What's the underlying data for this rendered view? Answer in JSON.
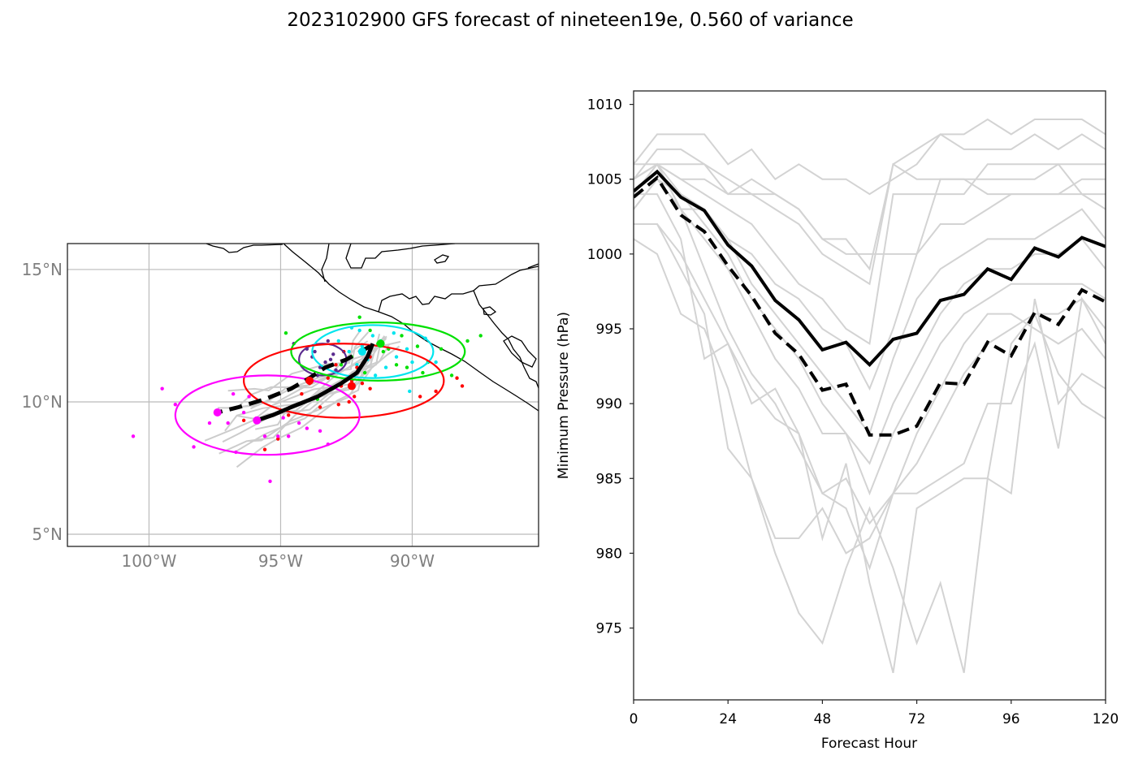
{
  "title": "2023102900 GFS forecast of nineteen19e, 0.560 of variance",
  "chart_data": [
    {
      "type": "map-scatter",
      "name": "track-map",
      "xlim": [
        -103.1,
        -85.2
      ],
      "ylim": [
        4.54,
        15.98
      ],
      "xticks": [
        {
          "value": -100,
          "label": "100°W"
        },
        {
          "value": -95,
          "label": "95°W"
        },
        {
          "value": -90,
          "label": "90°W"
        }
      ],
      "yticks": [
        {
          "value": 15,
          "label": "15°N"
        },
        {
          "value": 10,
          "label": "10°N"
        },
        {
          "value": 5,
          "label": "5°N"
        }
      ],
      "grid": true,
      "colors": {
        "ensemble": "#cccccc",
        "coast": "#000000",
        "gridline": "#bbbbbb",
        "ticklabel": "#808080"
      },
      "mean_track_solid": [
        [
          -91.5,
          12.2
        ],
        [
          -91.7,
          11.7
        ],
        [
          -92.1,
          11.1
        ],
        [
          -92.7,
          10.7
        ],
        [
          -93.6,
          10.2
        ],
        [
          -94.6,
          9.8
        ],
        [
          -95.3,
          9.5
        ],
        [
          -95.9,
          9.3
        ]
      ],
      "mean_track_dashed": [
        [
          -91.6,
          12.1
        ],
        [
          -92.5,
          11.6
        ],
        [
          -93.3,
          11.3
        ],
        [
          -93.9,
          10.9
        ],
        [
          -94.6,
          10.5
        ],
        [
          -95.6,
          10.1
        ],
        [
          -96.6,
          9.8
        ],
        [
          -97.4,
          9.6
        ]
      ],
      "ellipses": [
        {
          "color": "#5b2c8f",
          "cx": -93.4,
          "cy": 11.6,
          "rx": 0.9,
          "ry": 0.6
        },
        {
          "color": "#00e5ee",
          "cx": -91.5,
          "cy": 11.9,
          "rx": 2.3,
          "ry": 1.0
        },
        {
          "color": "#00e000",
          "cx": -91.3,
          "cy": 11.9,
          "rx": 3.3,
          "ry": 1.1
        },
        {
          "color": "#ff0000",
          "cx": -92.6,
          "cy": 10.8,
          "rx": 3.8,
          "ry": 1.4
        },
        {
          "color": "#ff00ff",
          "cx": -95.5,
          "cy": 9.5,
          "rx": 3.5,
          "ry": 1.5
        }
      ],
      "points": {
        "purple": [
          [
            -93.2,
            12.3
          ],
          [
            -94.5,
            12.2
          ],
          [
            -93.7,
            11.9
          ],
          [
            -93.1,
            11.6
          ],
          [
            -93.5,
            11.3
          ],
          [
            -93.0,
            11.8
          ],
          [
            -93.8,
            11.7
          ],
          [
            -92.9,
            11.2
          ],
          [
            -93.6,
            11.0
          ],
          [
            -93.3,
            11.5
          ],
          [
            -94.0,
            12.0
          ]
        ],
        "cyan": [
          [
            -92.3,
            12.8
          ],
          [
            -92.0,
            12.7
          ],
          [
            -91.5,
            12.5
          ],
          [
            -91.9,
            12.1
          ],
          [
            -91.2,
            12.3
          ],
          [
            -90.7,
            12.6
          ],
          [
            -90.2,
            12.0
          ],
          [
            -91.7,
            11.6
          ],
          [
            -91.0,
            11.3
          ],
          [
            -92.4,
            11.9
          ],
          [
            -90.0,
            11.5
          ],
          [
            -89.5,
            12.4
          ],
          [
            -89.1,
            11.5
          ],
          [
            -90.1,
            10.4
          ],
          [
            -92.8,
            12.3
          ],
          [
            -90.6,
            11.7
          ],
          [
            -91.4,
            11.0
          ],
          [
            -92.1,
            11.4
          ]
        ],
        "green": [
          [
            -92.0,
            13.2
          ],
          [
            -94.8,
            12.6
          ],
          [
            -91.6,
            12.7
          ],
          [
            -90.4,
            12.5
          ],
          [
            -89.8,
            12.1
          ],
          [
            -91.3,
            12.2
          ],
          [
            -88.9,
            12.0
          ],
          [
            -87.9,
            12.3
          ],
          [
            -87.4,
            12.5
          ],
          [
            -89.4,
            11.5
          ],
          [
            -91.1,
            11.9
          ],
          [
            -90.6,
            11.4
          ],
          [
            -92.3,
            11.7
          ],
          [
            -91.8,
            11.1
          ],
          [
            -90.2,
            11.3
          ],
          [
            -89.6,
            11.1
          ],
          [
            -88.5,
            11.0
          ],
          [
            -93.6,
            10.1
          ],
          [
            -92.7,
            11.4
          ],
          [
            -90.9,
            12.0
          ]
        ],
        "red": [
          [
            -92.6,
            11.9
          ],
          [
            -92.9,
            11.4
          ],
          [
            -92.1,
            11.3
          ],
          [
            -91.6,
            11.7
          ],
          [
            -92.3,
            10.8
          ],
          [
            -91.9,
            10.7
          ],
          [
            -92.7,
            10.6
          ],
          [
            -91.6,
            10.5
          ],
          [
            -92.2,
            10.2
          ],
          [
            -93.2,
            10.9
          ],
          [
            -93.9,
            10.7
          ],
          [
            -94.2,
            10.3
          ],
          [
            -93.5,
            9.8
          ],
          [
            -94.7,
            9.5
          ],
          [
            -95.1,
            8.6
          ],
          [
            -95.6,
            8.2
          ],
          [
            -88.3,
            10.9
          ],
          [
            -88.1,
            10.6
          ],
          [
            -89.1,
            10.4
          ],
          [
            -89.7,
            10.2
          ],
          [
            -92.4,
            10.0
          ],
          [
            -92.8,
            9.9
          ],
          [
            -96.4,
            9.3
          ]
        ],
        "magenta": [
          [
            -100.6,
            8.7
          ],
          [
            -99.5,
            10.5
          ],
          [
            -99.0,
            9.9
          ],
          [
            -98.3,
            8.3
          ],
          [
            -97.7,
            9.2
          ],
          [
            -96.7,
            8.1
          ],
          [
            -96.2,
            10.2
          ],
          [
            -95.6,
            8.7
          ],
          [
            -95.1,
            8.7
          ],
          [
            -94.7,
            8.7
          ],
          [
            -94.3,
            9.2
          ],
          [
            -95.4,
            7.0
          ],
          [
            -96.8,
            10.3
          ],
          [
            -94.0,
            9.0
          ],
          [
            -93.2,
            8.4
          ],
          [
            -93.5,
            8.9
          ],
          [
            -94.9,
            9.4
          ],
          [
            -96.4,
            9.6
          ],
          [
            -97.0,
            9.2
          ]
        ]
      },
      "points_large": [
        {
          "color": "#ff00ff",
          "lon": -97.4,
          "lat": 9.6
        },
        {
          "color": "#ff00ff",
          "lon": -95.9,
          "lat": 9.3
        },
        {
          "color": "#ff0000",
          "lon": -93.9,
          "lat": 10.8
        },
        {
          "color": "#ff0000",
          "lon": -92.3,
          "lat": 10.6
        },
        {
          "color": "#00e5ee",
          "lon": -91.9,
          "lat": 11.9
        },
        {
          "color": "#00e000",
          "lon": -91.2,
          "lat": 12.2
        }
      ]
    },
    {
      "type": "line",
      "name": "pressure-plot",
      "xlabel": "Forecast Hour",
      "ylabel": "Minimum Pressure (hPa)",
      "xlim": [
        0,
        120
      ],
      "ylim": [
        970.2,
        1010.9
      ],
      "xticks": [
        0,
        24,
        48,
        72,
        96,
        120
      ],
      "yticks": [
        975,
        980,
        985,
        990,
        995,
        1000,
        1005,
        1010
      ],
      "grid": false,
      "x": [
        0,
        6,
        12,
        18,
        24,
        30,
        36,
        42,
        48,
        54,
        60,
        66,
        72,
        78,
        84,
        90,
        96,
        102,
        108,
        114,
        120
      ],
      "series": [
        {
          "name": "ensemble-mean",
          "style": "solid",
          "color": "#000000",
          "values": [
            1004.2,
            1005.5,
            1003.8,
            1002.9,
            1000.6,
            999.2,
            996.9,
            995.6,
            993.6,
            994.1,
            992.6,
            994.3,
            994.7,
            996.9,
            997.3,
            999.0,
            998.3,
            1000.4,
            999.8,
            1001.1,
            1000.5
          ]
        },
        {
          "name": "deterministic",
          "style": "dashed",
          "color": "#000000",
          "values": [
            1003.8,
            1005.1,
            1002.6,
            1001.5,
            999.2,
            997.2,
            994.7,
            993.3,
            990.9,
            991.3,
            987.9,
            987.9,
            988.5,
            991.4,
            991.3,
            994.1,
            993.2,
            996.1,
            995.3,
            997.6,
            996.8
          ]
        }
      ],
      "ensemble_color": "#d3d3d3",
      "ensemble_members": [
        [
          1006,
          1008,
          1008,
          1008,
          1006,
          1007,
          1005,
          1006,
          1005,
          1005,
          1004,
          1005,
          1006,
          1008,
          1008,
          1009,
          1008,
          1009,
          1009,
          1009,
          1008
        ],
        [
          1005,
          1007,
          1007,
          1006,
          1004,
          1005,
          1004,
          1003,
          1001,
          1001,
          999,
          1006,
          1007,
          1008,
          1007,
          1007,
          1007,
          1008,
          1007,
          1008,
          1007
        ],
        [
          1006,
          1006,
          1006,
          1006,
          1005,
          1004,
          1004,
          1003,
          1001,
          1000,
          1000,
          1000,
          1000,
          1005,
          1005,
          1005,
          1005,
          1005,
          1006,
          1006,
          1006
        ],
        [
          1005,
          1006,
          1005,
          1005,
          1004,
          1004,
          1003,
          1002,
          1000,
          999,
          998,
          1006,
          1005,
          1005,
          1005,
          1004,
          1004,
          1004,
          1004,
          1005,
          1005
        ],
        [
          1004,
          1006,
          1005,
          1004,
          1003,
          1002,
          1000,
          998,
          997,
          995,
          994,
          1004,
          1004,
          1004,
          1004,
          1006,
          1006,
          1006,
          1006,
          1004,
          1004
        ],
        [
          1003,
          1005,
          1004,
          1003,
          1001,
          1000,
          998,
          997,
          995,
          994,
          991,
          995,
          1000,
          1002,
          1002,
          1003,
          1004,
          1004,
          1004,
          1004,
          1003
        ],
        [
          1004,
          1006,
          1003,
          1003,
          1001,
          998,
          996,
          994,
          992,
          990,
          988,
          993,
          997,
          999,
          1000,
          1001,
          1001,
          1001,
          1002,
          1003,
          1001
        ],
        [
          1005,
          1006,
          1004,
          1002,
          1000,
          997,
          995,
          993,
          990,
          988,
          986,
          990,
          993,
          996,
          998,
          999,
          999,
          1000,
          1000,
          1001,
          999
        ],
        [
          1003,
          1005,
          1003,
          1001,
          999,
          996,
          993,
          991,
          988,
          988,
          984,
          988,
          991,
          994,
          996,
          997,
          998,
          998,
          998,
          998,
          997
        ],
        [
          1002,
          1002,
          1000,
          997,
          994,
          991,
          989,
          988,
          984,
          985,
          982,
          984,
          986,
          989,
          992,
          994,
          995,
          996,
          996,
          997,
          995
        ],
        [
          1001,
          1000,
          996,
          995,
          991,
          985,
          981,
          981,
          983,
          980,
          981,
          984,
          988,
          991,
          994,
          996,
          996,
          995,
          994,
          995,
          993
        ],
        [
          1002,
          1002,
          999,
          996,
          987,
          985,
          980,
          976,
          974,
          979,
          983,
          979,
          974,
          978,
          972,
          985,
          984,
          997,
          990,
          992,
          991
        ],
        [
          1004,
          1004,
          1001,
          993,
          994,
          990,
          991,
          988,
          981,
          986,
          978,
          972,
          983,
          984,
          985,
          985,
          994,
          996,
          992,
          990,
          989
        ],
        [
          1005,
          1006,
          1003,
          999,
          995,
          992,
          990,
          987,
          984,
          983,
          979,
          984,
          984,
          985,
          986,
          990,
          990,
          994,
          987,
          997,
          994
        ]
      ]
    }
  ]
}
